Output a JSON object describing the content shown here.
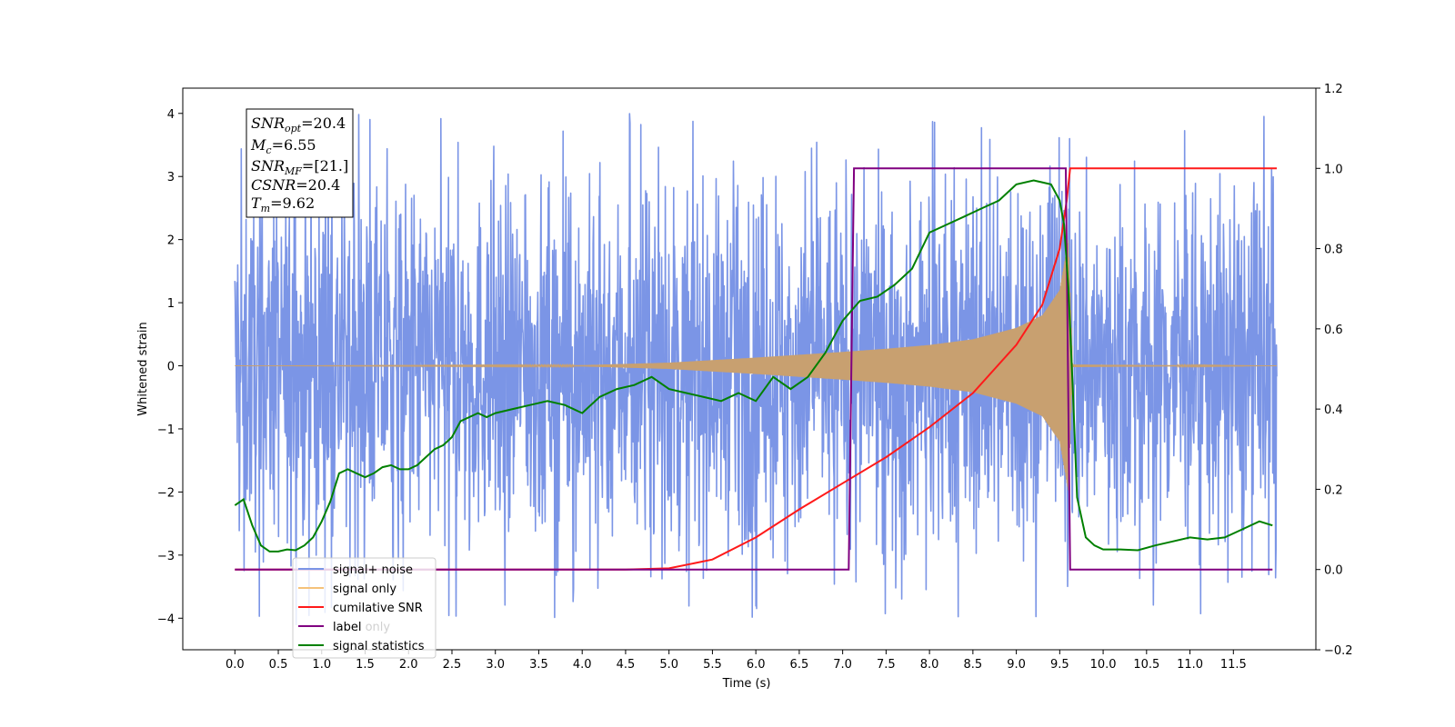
{
  "chart_data": {
    "type": "line",
    "xlabel": "Time (s)",
    "ylabel": "Whitened strain",
    "x_ticks": [
      0.0,
      0.5,
      1.0,
      1.5,
      2.0,
      2.5,
      3.0,
      3.5,
      4.0,
      4.5,
      5.0,
      5.5,
      6.0,
      6.5,
      7.0,
      7.5,
      8.0,
      8.5,
      9.0,
      9.5,
      10.0,
      10.5,
      11.0,
      11.5
    ],
    "x_tick_labels": [
      "0.0",
      "0.5",
      "1.0",
      "1.5",
      "2.0",
      "2.5",
      "3.0",
      "3.5",
      "4.0",
      "4.5",
      "5.0",
      "5.5",
      "6.0",
      "6.5",
      "7.0",
      "7.5",
      "8.0",
      "8.5",
      "9.0",
      "9.5",
      "10.0",
      "10.5",
      "11.0",
      "11.5"
    ],
    "xlim": [
      -0.6,
      12.45
    ],
    "ylim_left": [
      -4.5,
      4.4
    ],
    "y_left_ticks": [
      -4,
      -3,
      -2,
      -1,
      0,
      1,
      2,
      3,
      4
    ],
    "y_left_tick_labels": [
      "−4",
      "−3",
      "−2",
      "−1",
      "0",
      "1",
      "2",
      "3",
      "4"
    ],
    "ylim_right": [
      -0.2,
      1.2
    ],
    "y_right_ticks": [
      -0.2,
      0.0,
      0.2,
      0.4,
      0.6,
      0.8,
      1.0,
      1.2
    ],
    "y_right_tick_labels": [
      "−0.2",
      "0.0",
      "0.2",
      "0.4",
      "0.6",
      "0.8",
      "1.0",
      "1.2"
    ],
    "annotation": {
      "lines": [
        {
          "base": "SNR",
          "sub": "opt",
          "value": "=20.4"
        },
        {
          "base": "M",
          "sub": "c",
          "value": "=6.55"
        },
        {
          "base": "SNR",
          "sub": "MF",
          "value": "=[21.]"
        },
        {
          "base": "CSNR",
          "sub": "",
          "value": "=20.4"
        },
        {
          "base": "T",
          "sub": "m",
          "value": "=9.62"
        }
      ]
    },
    "legend": {
      "position": "lower-left",
      "entries": [
        {
          "label": "signal+ noise",
          "color": "#7b95e6"
        },
        {
          "label": "signal only",
          "color": "#f5c27a"
        },
        {
          "label": "cumilative SNR",
          "color": "#ff1a1a"
        },
        {
          "label": "label",
          "color": "#800080"
        },
        {
          "label": "signal statistics",
          "color": "#008000"
        }
      ],
      "hidden_label": "label only"
    },
    "series": [
      {
        "name": "signal+ noise",
        "axis": "left",
        "color": "#7b95e6",
        "x_range": [
          0.0,
          12.0
        ],
        "typical_amplitude": [
          -2.4,
          2.4
        ],
        "peak_max": 4.0,
        "peak_min": -4.1
      },
      {
        "name": "signal only",
        "axis": "left",
        "color": "#c8a070",
        "x_range": [
          0.0,
          12.0
        ],
        "envelope": {
          "x": [
            0.0,
            4.0,
            5.0,
            6.0,
            7.0,
            7.5,
            8.0,
            8.5,
            9.0,
            9.3,
            9.5,
            9.6,
            9.65,
            12.0
          ],
          "amp": [
            0.0,
            0.01,
            0.05,
            0.13,
            0.22,
            0.27,
            0.33,
            0.42,
            0.6,
            0.8,
            1.2,
            2.0,
            0.02,
            0.0
          ]
        }
      },
      {
        "name": "cumilative SNR",
        "axis": "right",
        "color": "#ff1a1a",
        "x": [
          0.0,
          4.5,
          5.0,
          5.5,
          6.0,
          6.5,
          7.0,
          7.5,
          8.0,
          8.5,
          9.0,
          9.3,
          9.5,
          9.58,
          9.62,
          12.0
        ],
        "y": [
          0.0,
          0.0,
          0.003,
          0.025,
          0.08,
          0.15,
          0.215,
          0.28,
          0.355,
          0.44,
          0.56,
          0.66,
          0.8,
          0.92,
          1.0,
          1.0
        ]
      },
      {
        "name": "label",
        "axis": "right",
        "color": "#800080",
        "x": [
          0.0,
          7.07,
          7.13,
          9.57,
          9.62,
          11.95
        ],
        "y": [
          0.0,
          0.0,
          1.0,
          1.0,
          0.0,
          0.0
        ]
      },
      {
        "name": "signal statistics",
        "axis": "right",
        "color": "#008000",
        "x": [
          0.0,
          0.1,
          0.2,
          0.3,
          0.4,
          0.5,
          0.6,
          0.7,
          0.8,
          0.9,
          1.0,
          1.1,
          1.2,
          1.3,
          1.4,
          1.5,
          1.6,
          1.7,
          1.8,
          1.9,
          2.0,
          2.1,
          2.2,
          2.3,
          2.4,
          2.5,
          2.6,
          2.7,
          2.8,
          2.9,
          3.0,
          3.2,
          3.4,
          3.6,
          3.8,
          4.0,
          4.2,
          4.4,
          4.6,
          4.8,
          5.0,
          5.2,
          5.4,
          5.6,
          5.8,
          6.0,
          6.2,
          6.4,
          6.6,
          6.8,
          7.0,
          7.2,
          7.4,
          7.6,
          7.8,
          8.0,
          8.2,
          8.4,
          8.6,
          8.8,
          9.0,
          9.2,
          9.4,
          9.5,
          9.55,
          9.6,
          9.65,
          9.7,
          9.8,
          9.9,
          10.0,
          10.2,
          10.4,
          10.6,
          10.8,
          11.0,
          11.2,
          11.4,
          11.6,
          11.8,
          11.95
        ],
        "y": [
          0.16,
          0.175,
          0.11,
          0.06,
          0.045,
          0.045,
          0.05,
          0.048,
          0.06,
          0.08,
          0.12,
          0.17,
          0.24,
          0.25,
          0.24,
          0.23,
          0.24,
          0.255,
          0.26,
          0.25,
          0.25,
          0.26,
          0.28,
          0.3,
          0.31,
          0.33,
          0.37,
          0.38,
          0.39,
          0.38,
          0.39,
          0.4,
          0.41,
          0.42,
          0.41,
          0.39,
          0.43,
          0.45,
          0.46,
          0.48,
          0.45,
          0.44,
          0.43,
          0.42,
          0.44,
          0.42,
          0.48,
          0.45,
          0.48,
          0.54,
          0.62,
          0.67,
          0.68,
          0.71,
          0.75,
          0.84,
          0.86,
          0.88,
          0.9,
          0.92,
          0.96,
          0.97,
          0.96,
          0.92,
          0.86,
          0.7,
          0.45,
          0.18,
          0.08,
          0.06,
          0.05,
          0.05,
          0.048,
          0.06,
          0.07,
          0.08,
          0.075,
          0.08,
          0.1,
          0.12,
          0.11
        ]
      }
    ]
  }
}
